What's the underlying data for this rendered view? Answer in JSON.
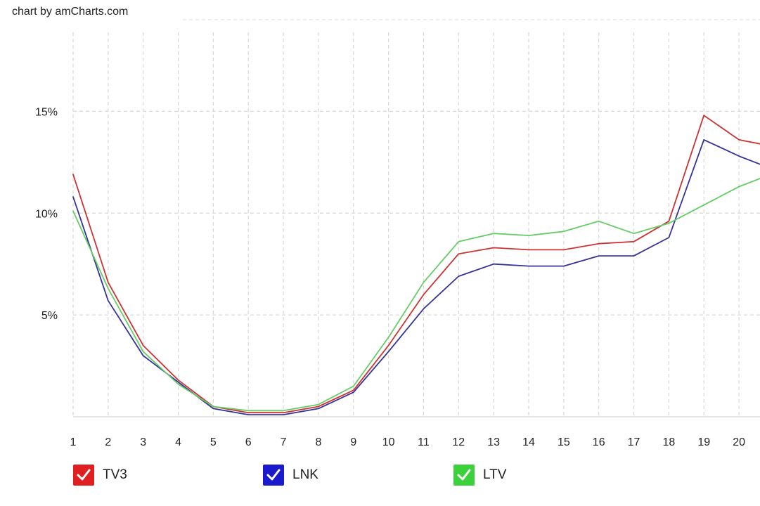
{
  "credit": "chart by amCharts.com",
  "chart_data": {
    "type": "line",
    "x": [
      1,
      2,
      3,
      4,
      5,
      6,
      7,
      8,
      9,
      10,
      11,
      12,
      13,
      14,
      15,
      16,
      17,
      18,
      19,
      20,
      20.6
    ],
    "xticks": [
      "1",
      "2",
      "3",
      "4",
      "5",
      "6",
      "7",
      "8",
      "9",
      "10",
      "11",
      "12",
      "13",
      "14",
      "15",
      "16",
      "17",
      "18",
      "19",
      "20"
    ],
    "yticks": [
      {
        "value": 5,
        "label": "5%"
      },
      {
        "value": 10,
        "label": "10%"
      },
      {
        "value": 15,
        "label": "15%"
      }
    ],
    "xlim": [
      1,
      20.6
    ],
    "ylim": [
      0,
      19.5
    ],
    "grid": true,
    "legend_position": "bottom",
    "series": [
      {
        "name": "TV3",
        "color": "#cc3333",
        "values": [
          11.9,
          6.6,
          3.5,
          1.8,
          0.5,
          0.2,
          0.2,
          0.5,
          1.3,
          3.5,
          6.0,
          8.0,
          8.3,
          8.2,
          8.2,
          8.5,
          8.6,
          9.6,
          14.8,
          13.6,
          13.4
        ]
      },
      {
        "name": "LNK",
        "color": "#333399",
        "values": [
          10.8,
          5.7,
          3.0,
          1.7,
          0.4,
          0.1,
          0.1,
          0.4,
          1.2,
          3.2,
          5.3,
          6.9,
          7.5,
          7.4,
          7.4,
          7.9,
          7.9,
          8.8,
          13.6,
          12.8,
          12.4
        ]
      },
      {
        "name": "LTV",
        "color": "#66cc66",
        "values": [
          10.1,
          6.3,
          3.2,
          1.6,
          0.5,
          0.3,
          0.3,
          0.6,
          1.5,
          3.9,
          6.6,
          8.6,
          9.0,
          8.9,
          9.1,
          9.6,
          9.0,
          9.5,
          10.4,
          11.3,
          11.7
        ]
      }
    ]
  },
  "legend": [
    {
      "label": "TV3",
      "color": "#e02020"
    },
    {
      "label": "LNK",
      "color": "#1a1acc"
    },
    {
      "label": "LTV",
      "color": "#3ad13a"
    }
  ]
}
